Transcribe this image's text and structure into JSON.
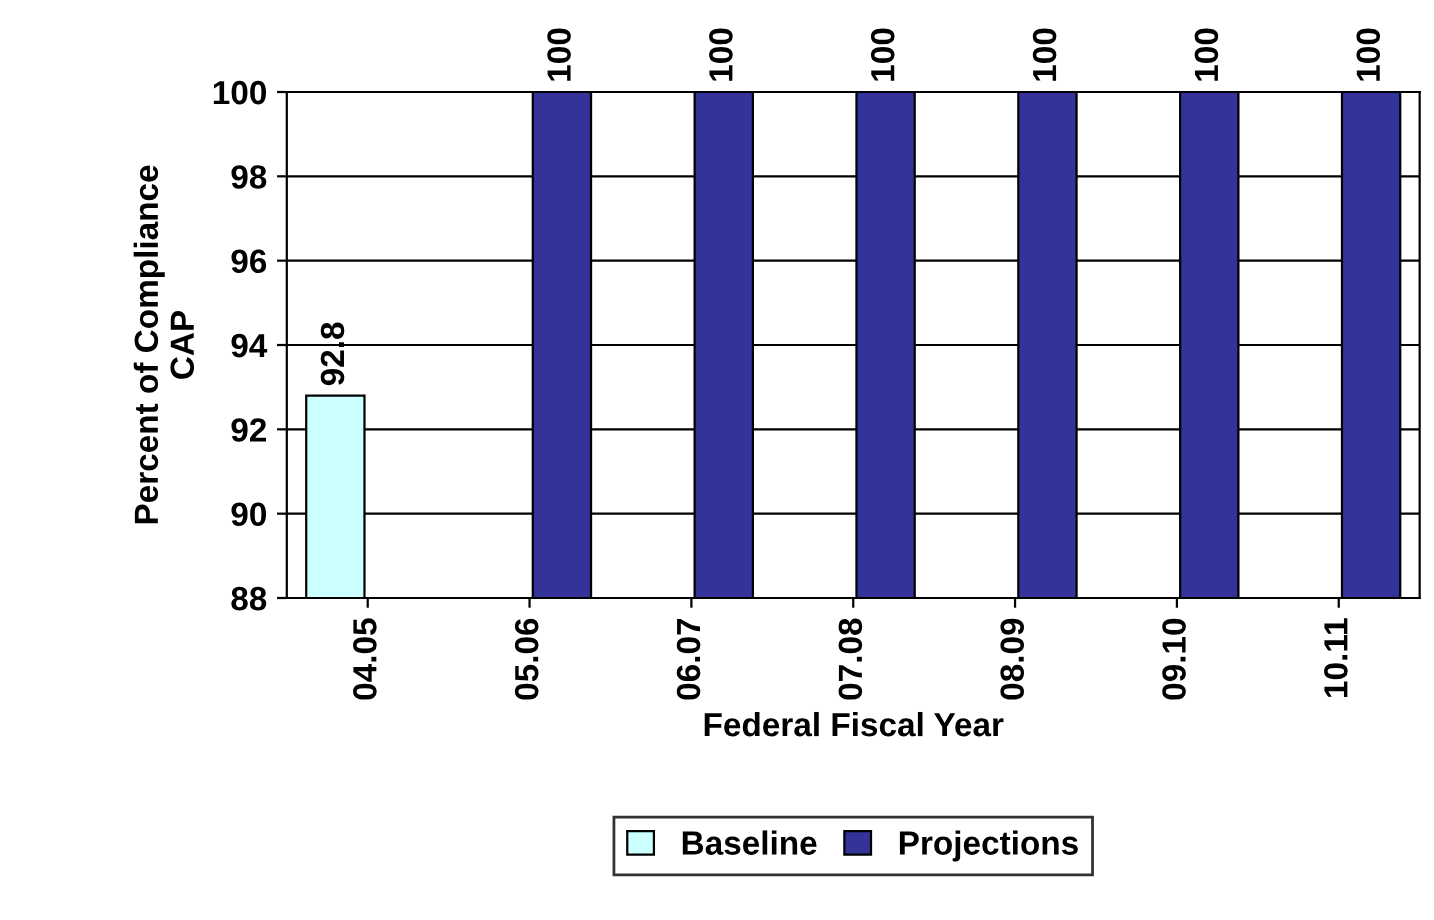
{
  "chart_data": {
    "type": "bar",
    "xlabel": "Federal Fiscal Year",
    "ylabel": "Percent of Compliance\nCAP",
    "categories": [
      "04.05",
      "05.06",
      "06.07",
      "07.08",
      "08.09",
      "09.10",
      "10.11"
    ],
    "series": [
      {
        "name": "Baseline",
        "color": "#ccffff",
        "values": [
          92.8,
          null,
          null,
          null,
          null,
          null,
          null
        ]
      },
      {
        "name": "Projections",
        "color": "#333399",
        "values": [
          null,
          100,
          100,
          100,
          100,
          100,
          100
        ]
      }
    ],
    "ylim": [
      88,
      100
    ],
    "yticks": [
      88,
      90,
      92,
      94,
      96,
      98,
      100
    ],
    "grid": "y",
    "legend": "bottom",
    "data_labels": true
  }
}
